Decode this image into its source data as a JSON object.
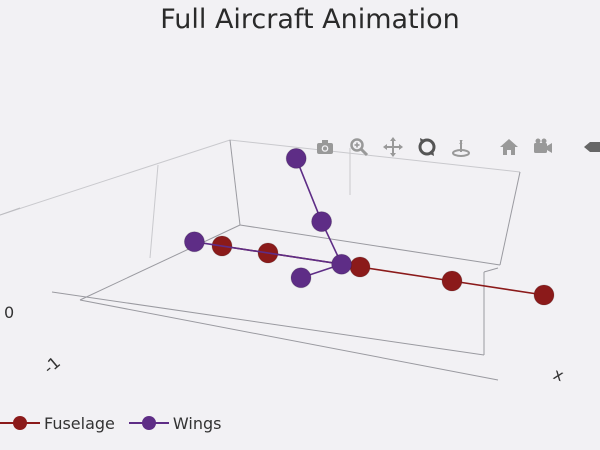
{
  "title": "Full Aircraft Animation",
  "modebar": {
    "icons": [
      "camera-icon",
      "zoom-icon",
      "pan-icon",
      "orbit-rotation-icon",
      "turntable-rotation-icon",
      "home-icon",
      "camera-view-icon",
      "plotly-logo-icon"
    ]
  },
  "chart_data": {
    "type": "scatter3d",
    "title": "Full Aircraft Animation",
    "axis_labels": {
      "x": "x"
    },
    "tick_labels": {
      "y": [
        "0",
        "-1"
      ]
    },
    "legend": {
      "placement": "bottom-left"
    },
    "grid": true,
    "series": [
      {
        "name": "Fuselage",
        "color": "#8b1a1a",
        "mode": "lines+markers",
        "points": [
          {
            "x": -1.0,
            "y": 0.0,
            "z": 0.0
          },
          {
            "x": -0.5,
            "y": 0.0,
            "z": 0.0
          },
          {
            "x": 0.5,
            "y": 0.0,
            "z": 0.0
          },
          {
            "x": 1.5,
            "y": 0.0,
            "z": 0.0
          },
          {
            "x": 2.5,
            "y": 0.0,
            "z": 0.0
          }
        ]
      },
      {
        "name": "Wings",
        "color": "#5e2d86",
        "mode": "lines+markers",
        "points": [
          {
            "x": -1.3,
            "y": 0.0,
            "z": 0.0
          },
          {
            "x": -0.2,
            "y": 0.0,
            "z": -0.2
          },
          {
            "x": 0.3,
            "y": 0.0,
            "z": 0.0
          },
          {
            "x": 0.2,
            "y": 0.0,
            "z": 0.4
          },
          {
            "x": 0.1,
            "y": 0.0,
            "z": 1.0
          }
        ]
      }
    ]
  }
}
